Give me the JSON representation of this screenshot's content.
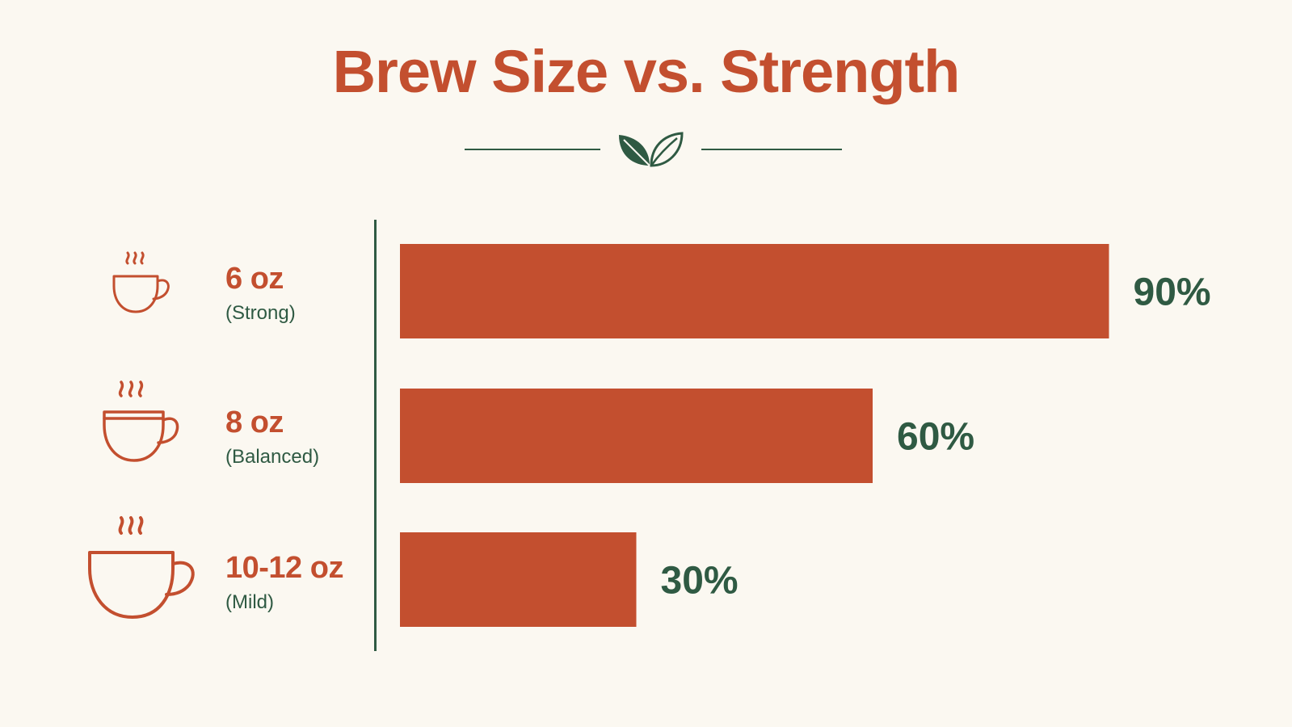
{
  "title": "Brew Size vs. Strength",
  "colors": {
    "background": "#fbf8f1",
    "accent": "#c34f2f",
    "green": "#2f5a43"
  },
  "divider": {
    "icon": "leaves-icon"
  },
  "chart_data": {
    "type": "bar",
    "orientation": "horizontal",
    "title": "Brew Size vs. Strength",
    "categories": [
      "6 oz",
      "8 oz",
      "10-12 oz"
    ],
    "category_notes": [
      "(Strong)",
      "(Balanced)",
      "(Mild)"
    ],
    "values": [
      90,
      60,
      30
    ],
    "value_labels": [
      "90%",
      "60%",
      "30%"
    ],
    "xlim": [
      0,
      100
    ],
    "grid": false,
    "legend": "none",
    "bar_color": "#c34f2f",
    "label_color": "#2f5a43",
    "icons": [
      "coffee-cup-small-icon",
      "coffee-cup-medium-icon",
      "coffee-cup-large-icon"
    ]
  }
}
